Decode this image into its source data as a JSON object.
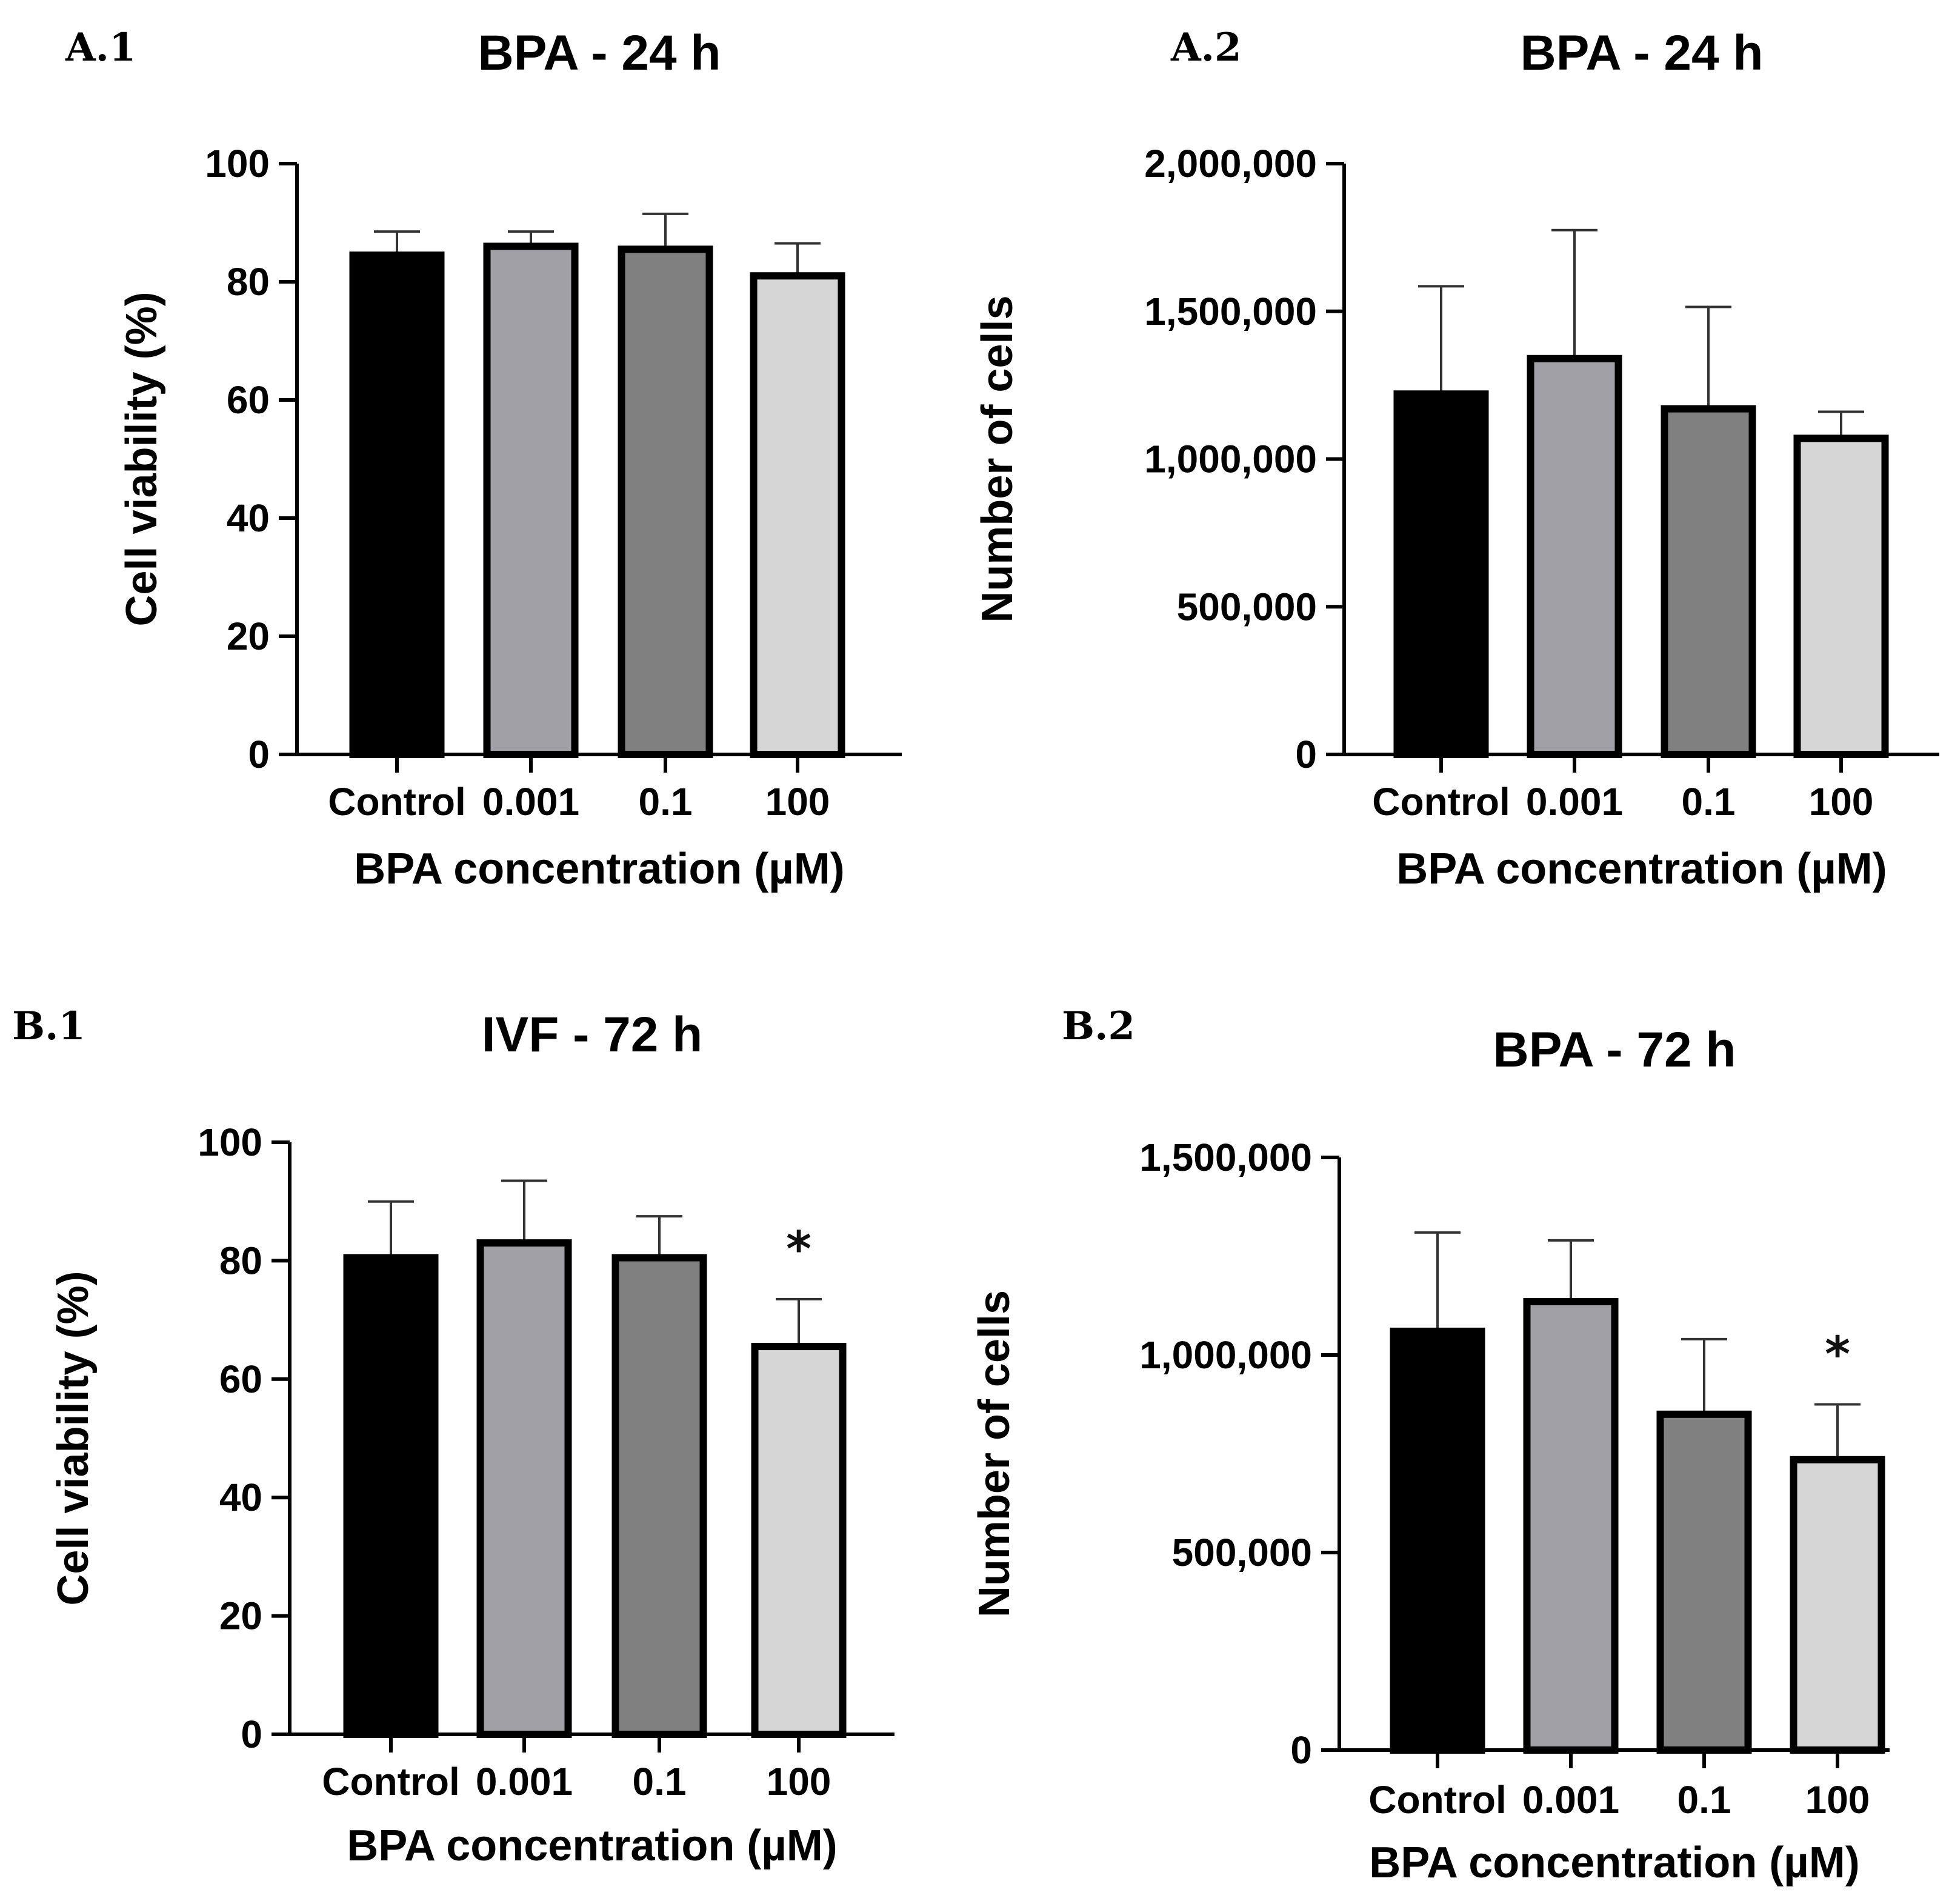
{
  "chart_data": [
    {
      "panel": "A.1",
      "type": "bar",
      "title": "BPA - 24 h",
      "xlabel": "BPA concentration (µM)",
      "ylabel": "Cell viability (%)",
      "categories": [
        "Control",
        "0.001",
        "0.1",
        "100"
      ],
      "values": [
        84.5,
        86,
        85.5,
        81
      ],
      "errors": [
        4,
        2.5,
        6,
        5.5
      ],
      "ylim": [
        0,
        100
      ],
      "yticks": [
        0,
        20,
        40,
        60,
        80,
        100
      ],
      "ytick_labels": [
        "0",
        "20",
        "40",
        "60",
        "80",
        "100"
      ],
      "colors": [
        "#000000",
        "#a0a0a6",
        "#808080",
        "#d6d6d6"
      ],
      "significance": [
        "",
        "",
        "",
        ""
      ]
    },
    {
      "panel": "A.2",
      "type": "bar",
      "title": "BPA - 24 h",
      "xlabel": "BPA concentration (µM)",
      "ylabel": "Number of cells",
      "categories": [
        "Control",
        "0.001",
        "0.1",
        "100"
      ],
      "values": [
        1220000,
        1340000,
        1170000,
        1070000
      ],
      "errors": [
        365000,
        435000,
        345000,
        90000
      ],
      "ylim": [
        0,
        2000000
      ],
      "yticks": [
        0,
        500000,
        1000000,
        1500000,
        2000000
      ],
      "ytick_labels": [
        "0",
        "500,000",
        "1,000,000",
        "1,500,000",
        "2,000,000"
      ],
      "colors": [
        "#000000",
        "#a0a0a6",
        "#808080",
        "#d6d6d6"
      ],
      "significance": [
        "",
        "",
        "",
        ""
      ]
    },
    {
      "panel": "B.1",
      "type": "bar",
      "title": "IVF - 72 h",
      "xlabel": "BPA concentration (µM)",
      "ylabel": "Cell viability (%)",
      "categories": [
        "Control",
        "0.001",
        "0.1",
        "100"
      ],
      "values": [
        80.5,
        83,
        80.5,
        65.5
      ],
      "errors": [
        9.5,
        10.5,
        7,
        8
      ],
      "ylim": [
        0,
        100
      ],
      "yticks": [
        0,
        20,
        40,
        60,
        80,
        100
      ],
      "ytick_labels": [
        "0",
        "20",
        "40",
        "60",
        "80",
        "100"
      ],
      "colors": [
        "#000000",
        "#a0a0a6",
        "#808080",
        "#d6d6d6"
      ],
      "significance": [
        "",
        "",
        "",
        "*"
      ]
    },
    {
      "panel": "B.2",
      "type": "bar",
      "title": "BPA - 72 h",
      "xlabel": "BPA concentration (µM)",
      "ylabel": "Number of cells",
      "categories": [
        "Control",
        "0.001",
        "0.1",
        "100"
      ],
      "values": [
        1060000,
        1135000,
        850000,
        735000
      ],
      "errors": [
        250000,
        155000,
        190000,
        140000
      ],
      "ylim": [
        0,
        1500000
      ],
      "yticks": [
        0,
        500000,
        1000000,
        1500000
      ],
      "ytick_labels": [
        "0",
        "500,000",
        "1,000,000",
        "1,500,000"
      ],
      "colors": [
        "#000000",
        "#a0a0a6",
        "#808080",
        "#d6d6d6"
      ],
      "significance": [
        "",
        "",
        "",
        "*"
      ]
    }
  ]
}
